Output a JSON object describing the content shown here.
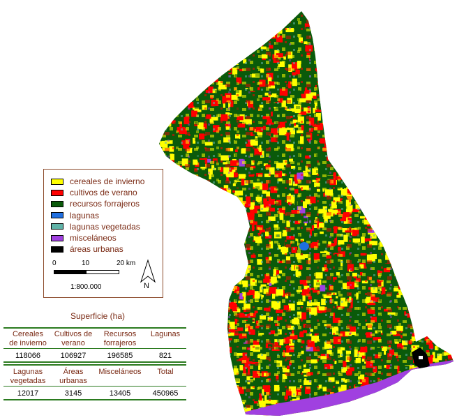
{
  "legend": {
    "items": [
      {
        "label": "cereales de invierno",
        "color": "#ffff00"
      },
      {
        "label": "cultivos de verano",
        "color": "#ff0000"
      },
      {
        "label": "recursos forrajeros",
        "color": "#0a5a0a"
      },
      {
        "label": "lagunas",
        "color": "#1f6fe0"
      },
      {
        "label": "lagunas vegetadas",
        "color": "#5fb3a8"
      },
      {
        "label": "misceláneos",
        "color": "#a040e0"
      },
      {
        "label": "áreas urbanas",
        "color": "#000000"
      }
    ]
  },
  "scale": {
    "labels": [
      "0",
      "10",
      "20 km"
    ],
    "ratio": "1:800.000"
  },
  "north": {
    "label": "N"
  },
  "table": {
    "title": "Superficie (ha)",
    "row1": {
      "headers": [
        [
          "Cereales",
          "de invierno"
        ],
        [
          "Cultivos de",
          "verano"
        ],
        [
          "Recursos",
          "forrajeros"
        ],
        [
          "Lagunas",
          ""
        ]
      ],
      "values": [
        "118066",
        "106927",
        "196585",
        "821"
      ]
    },
    "row2": {
      "headers": [
        [
          "Lagunas",
          "vegetadas"
        ],
        [
          "Áreas",
          "urbanas"
        ],
        [
          "Misceláneos",
          ""
        ],
        [
          "Total",
          ""
        ]
      ],
      "values": [
        "12017",
        "3145",
        "13405",
        "450965"
      ]
    }
  }
}
